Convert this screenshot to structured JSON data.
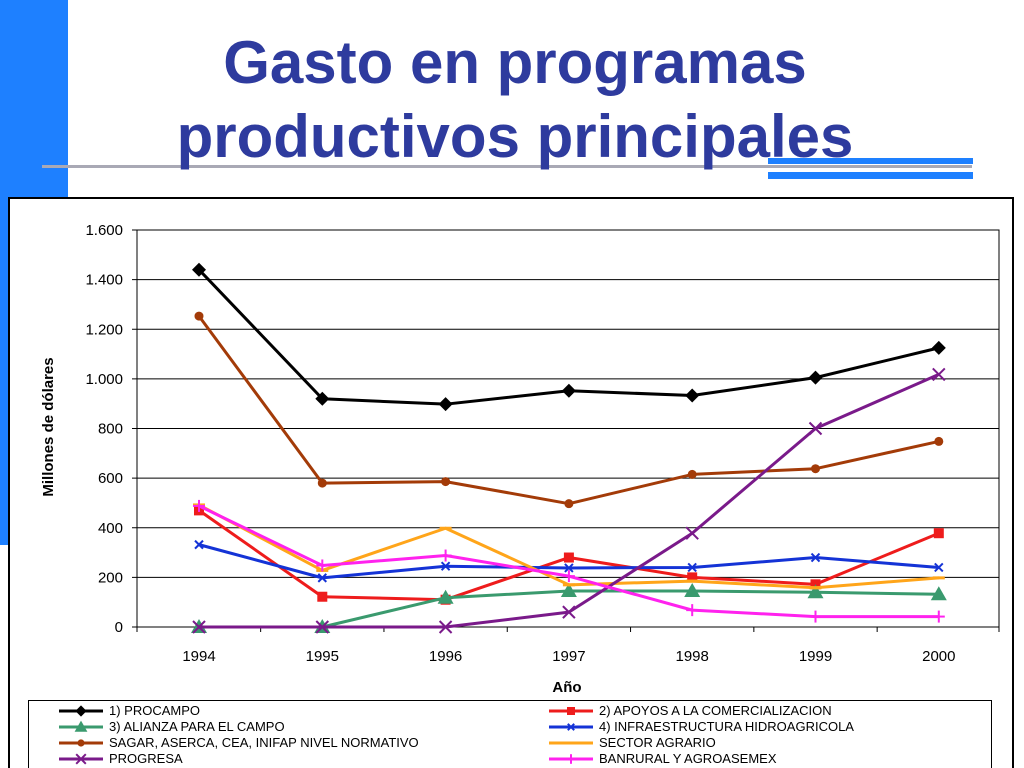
{
  "slide": {
    "title_line1": "Gasto en programas",
    "title_line2": "productivos principales",
    "colors": {
      "accent": "#1e80ff",
      "title": "#2e3b9e"
    }
  },
  "chart_data": {
    "type": "line",
    "xlabel": "Año",
    "ylabel": "Millones de dólares",
    "categories": [
      "1994",
      "1995",
      "1996",
      "1997",
      "1998",
      "1999",
      "2000"
    ],
    "ylim": [
      0,
      1600
    ],
    "yticks": [
      0,
      200,
      400,
      600,
      800,
      1000,
      1200,
      1400,
      1600
    ],
    "ytick_labels": [
      "0",
      "200",
      "400",
      "600",
      "800",
      "1.000",
      "1.200",
      "1.400",
      "1.600"
    ],
    "grid": true,
    "legend_position": "bottom",
    "series": [
      {
        "name": "1) PROCAMPO",
        "color": "#000000",
        "marker": "diamond",
        "values": [
          1440,
          920,
          898,
          952,
          933,
          1005,
          1125
        ]
      },
      {
        "name": "2) APOYOS A LA COMERCIALIZACION",
        "color": "#ee1c1c",
        "marker": "square",
        "values": [
          470,
          122,
          110,
          280,
          200,
          172,
          378
        ]
      },
      {
        "name": "3) ALIANZA PARA EL CAMPO",
        "color": "#3a9a6e",
        "marker": "triangle",
        "values": [
          0,
          0,
          118,
          145,
          145,
          140,
          132
        ]
      },
      {
        "name": "4) INFRAESTRUCTURA HIDROAGRICOLA",
        "color": "#1433d6",
        "marker": "x",
        "values": [
          332,
          198,
          245,
          238,
          240,
          280,
          240
        ]
      },
      {
        "name": "SAGAR, ASERCA, CEA, INIFAP NIVEL NORMATIVO",
        "color": "#a33b08",
        "marker": "circle",
        "values": [
          1253,
          580,
          586,
          497,
          615,
          638,
          748
        ]
      },
      {
        "name": "SECTOR AGRARIO",
        "color": "#ffa51a",
        "marker": "dash",
        "values": [
          492,
          228,
          398,
          170,
          185,
          158,
          198
        ]
      },
      {
        "name": "PROGRESA",
        "color": "#7a1a8a",
        "marker": "star",
        "values": [
          0,
          0,
          0,
          60,
          378,
          800,
          1018
        ]
      },
      {
        "name": "BANRURAL Y AGROASEMEX",
        "color": "#ff22ee",
        "marker": "plus",
        "values": [
          488,
          248,
          288,
          205,
          68,
          42,
          42
        ]
      }
    ]
  }
}
